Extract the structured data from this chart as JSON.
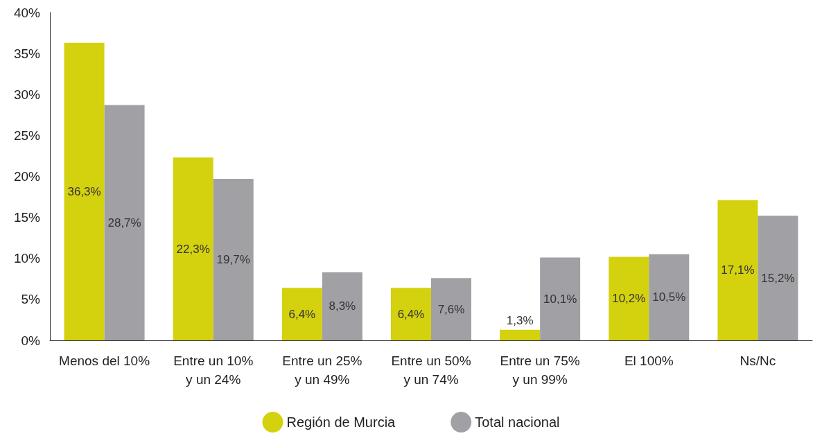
{
  "chart_data": {
    "type": "bar",
    "categories": [
      "Menos del 10%",
      "Entre un 10%\ny un 24%",
      "Entre un 25%\ny un 49%",
      "Entre un 50%\ny un 74%",
      "Entre un 75%\ny un 99%",
      "El 100%",
      "Ns/Nc"
    ],
    "series": [
      {
        "name": "Región de Murcia",
        "color": "#d4d10f",
        "values": [
          36.3,
          22.3,
          6.4,
          6.4,
          1.3,
          10.2,
          17.1
        ],
        "value_labels": [
          "36,3%",
          "22,3%",
          "6,4%",
          "6,4%",
          "1,3%",
          "10,2%",
          "17,1%"
        ]
      },
      {
        "name": "Total nacional",
        "color": "#a0a0a5",
        "values": [
          28.7,
          19.7,
          8.3,
          7.6,
          10.1,
          10.5,
          15.2
        ],
        "value_labels": [
          "28,7%",
          "19,7%",
          "8,3%",
          "7,6%",
          "10,1%",
          "10,5%",
          "15,2%"
        ]
      }
    ],
    "ylim": [
      0,
      40
    ],
    "yticks": [
      {
        "value": 0,
        "label": "0%"
      },
      {
        "value": 5,
        "label": "5%"
      },
      {
        "value": 10,
        "label": "10%"
      },
      {
        "value": 15,
        "label": "15%"
      },
      {
        "value": 20,
        "label": "20%"
      },
      {
        "value": 25,
        "label": "25%"
      },
      {
        "value": 30,
        "label": "30%"
      },
      {
        "value": 35,
        "label": "35%"
      },
      {
        "value": 40,
        "label": "40%"
      }
    ],
    "grid": false,
    "legend": "bottom"
  }
}
